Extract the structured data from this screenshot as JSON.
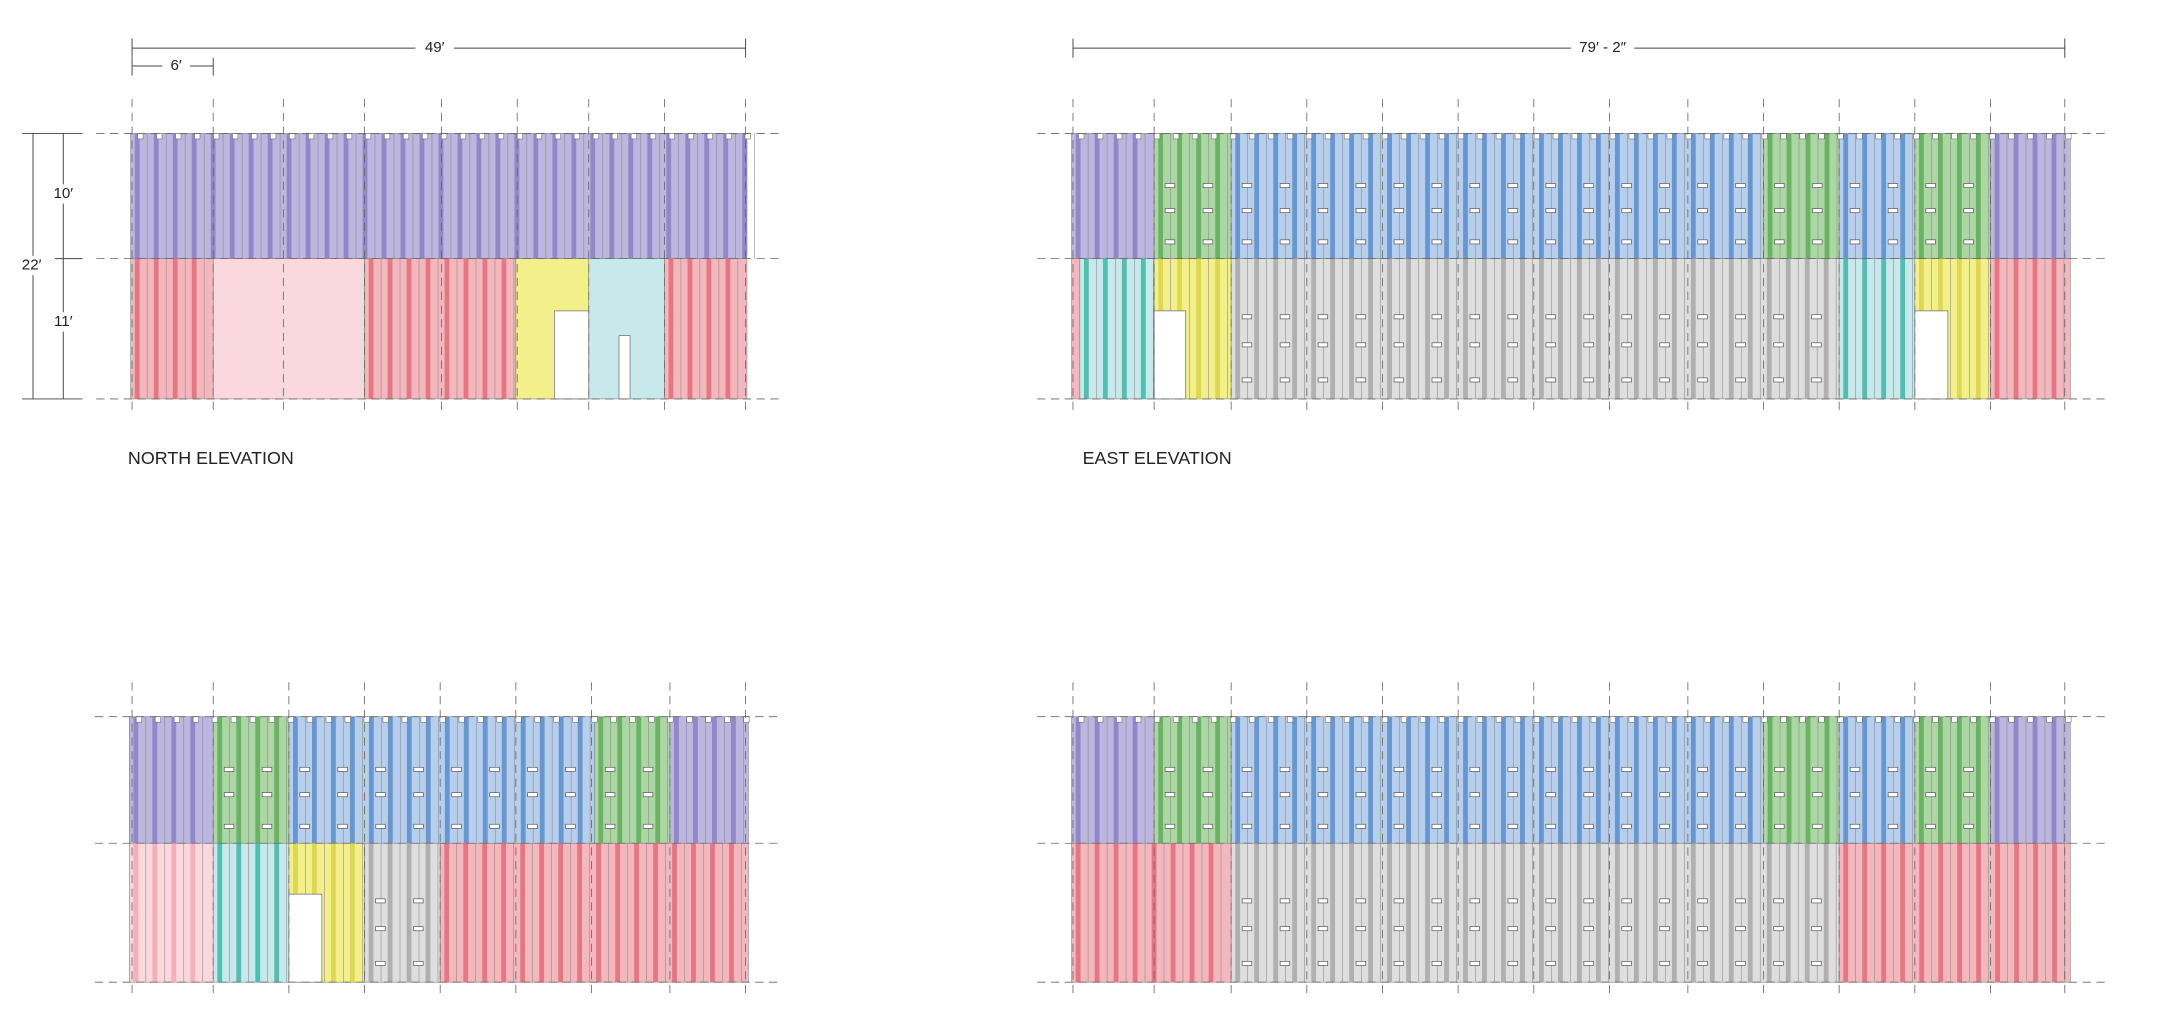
{
  "north": {
    "label": "NORTH ELEVATION",
    "dimensions": {
      "width": "49′",
      "module": "6′",
      "upper": "10′",
      "total": "22′",
      "lower": "11′"
    }
  },
  "east": {
    "label": "EAST ELEVATION",
    "dimensions": {
      "width": "79′ - 2″"
    }
  }
}
